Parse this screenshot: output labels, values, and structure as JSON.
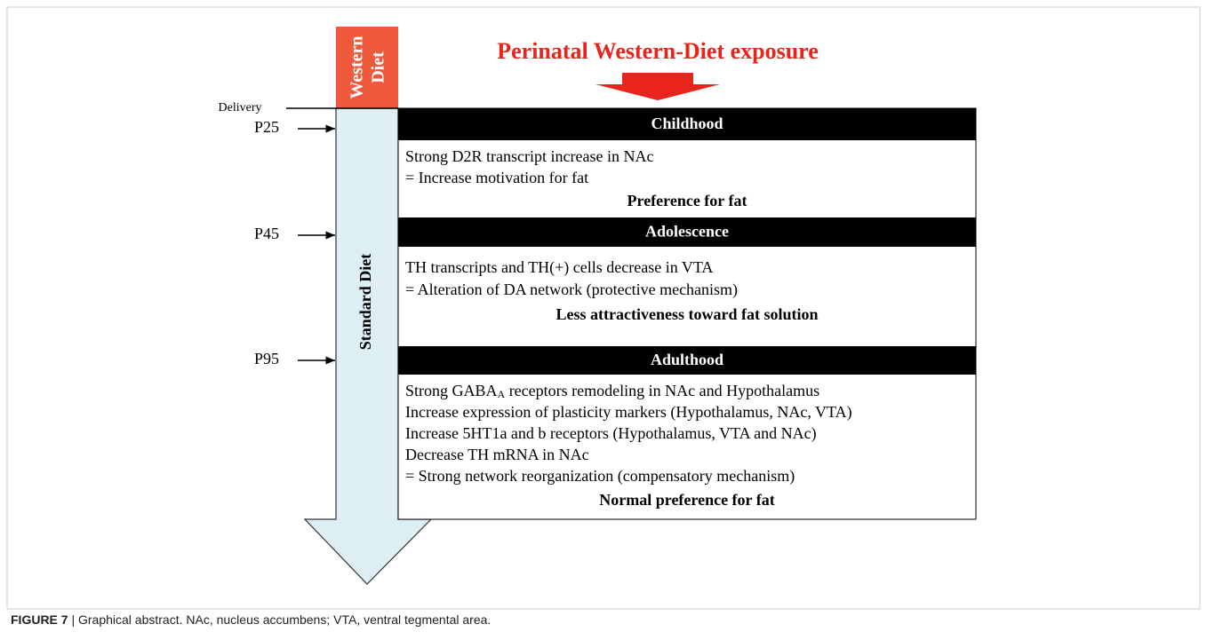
{
  "title": "Perinatal Western-Diet exposure",
  "western_diet": [
    "Western",
    "Diet"
  ],
  "standard_diet": "Standard Diet",
  "timeline": {
    "delivery": "Delivery",
    "points": [
      "P25",
      "P45",
      "P95"
    ]
  },
  "sections": [
    {
      "heading": "Childhood",
      "lines": [
        "Strong D2R transcript increase in NAc",
        "= Increase motivation for fat"
      ],
      "conclusion": "Preference for fat"
    },
    {
      "heading": "Adolescence",
      "lines": [
        "TH transcripts and TH(+) cells decrease in VTA",
        "= Alteration of DA network (protective mechanism)"
      ],
      "conclusion": "Less attractiveness toward fat solution"
    },
    {
      "heading": "Adulthood",
      "lines": [
        {
          "text": "Strong GABA",
          "sub": "A",
          "rest": " receptors remodeling in NAc and Hypothalamus"
        },
        "Increase expression of plasticity markers (Hypothalamus, NAc, VTA)",
        "Increase 5HT1a and b receptors (Hypothalamus, VTA and NAc)",
        "Decrease TH mRNA in NAc",
        "= Strong network reorganization (compensatory mechanism)"
      ],
      "conclusion": "Normal preference for fat"
    }
  ],
  "caption": {
    "label": "FIGURE 7",
    "text": "| Graphical abstract. NAc, nucleus accumbens; VTA, ventral tegmental area."
  }
}
